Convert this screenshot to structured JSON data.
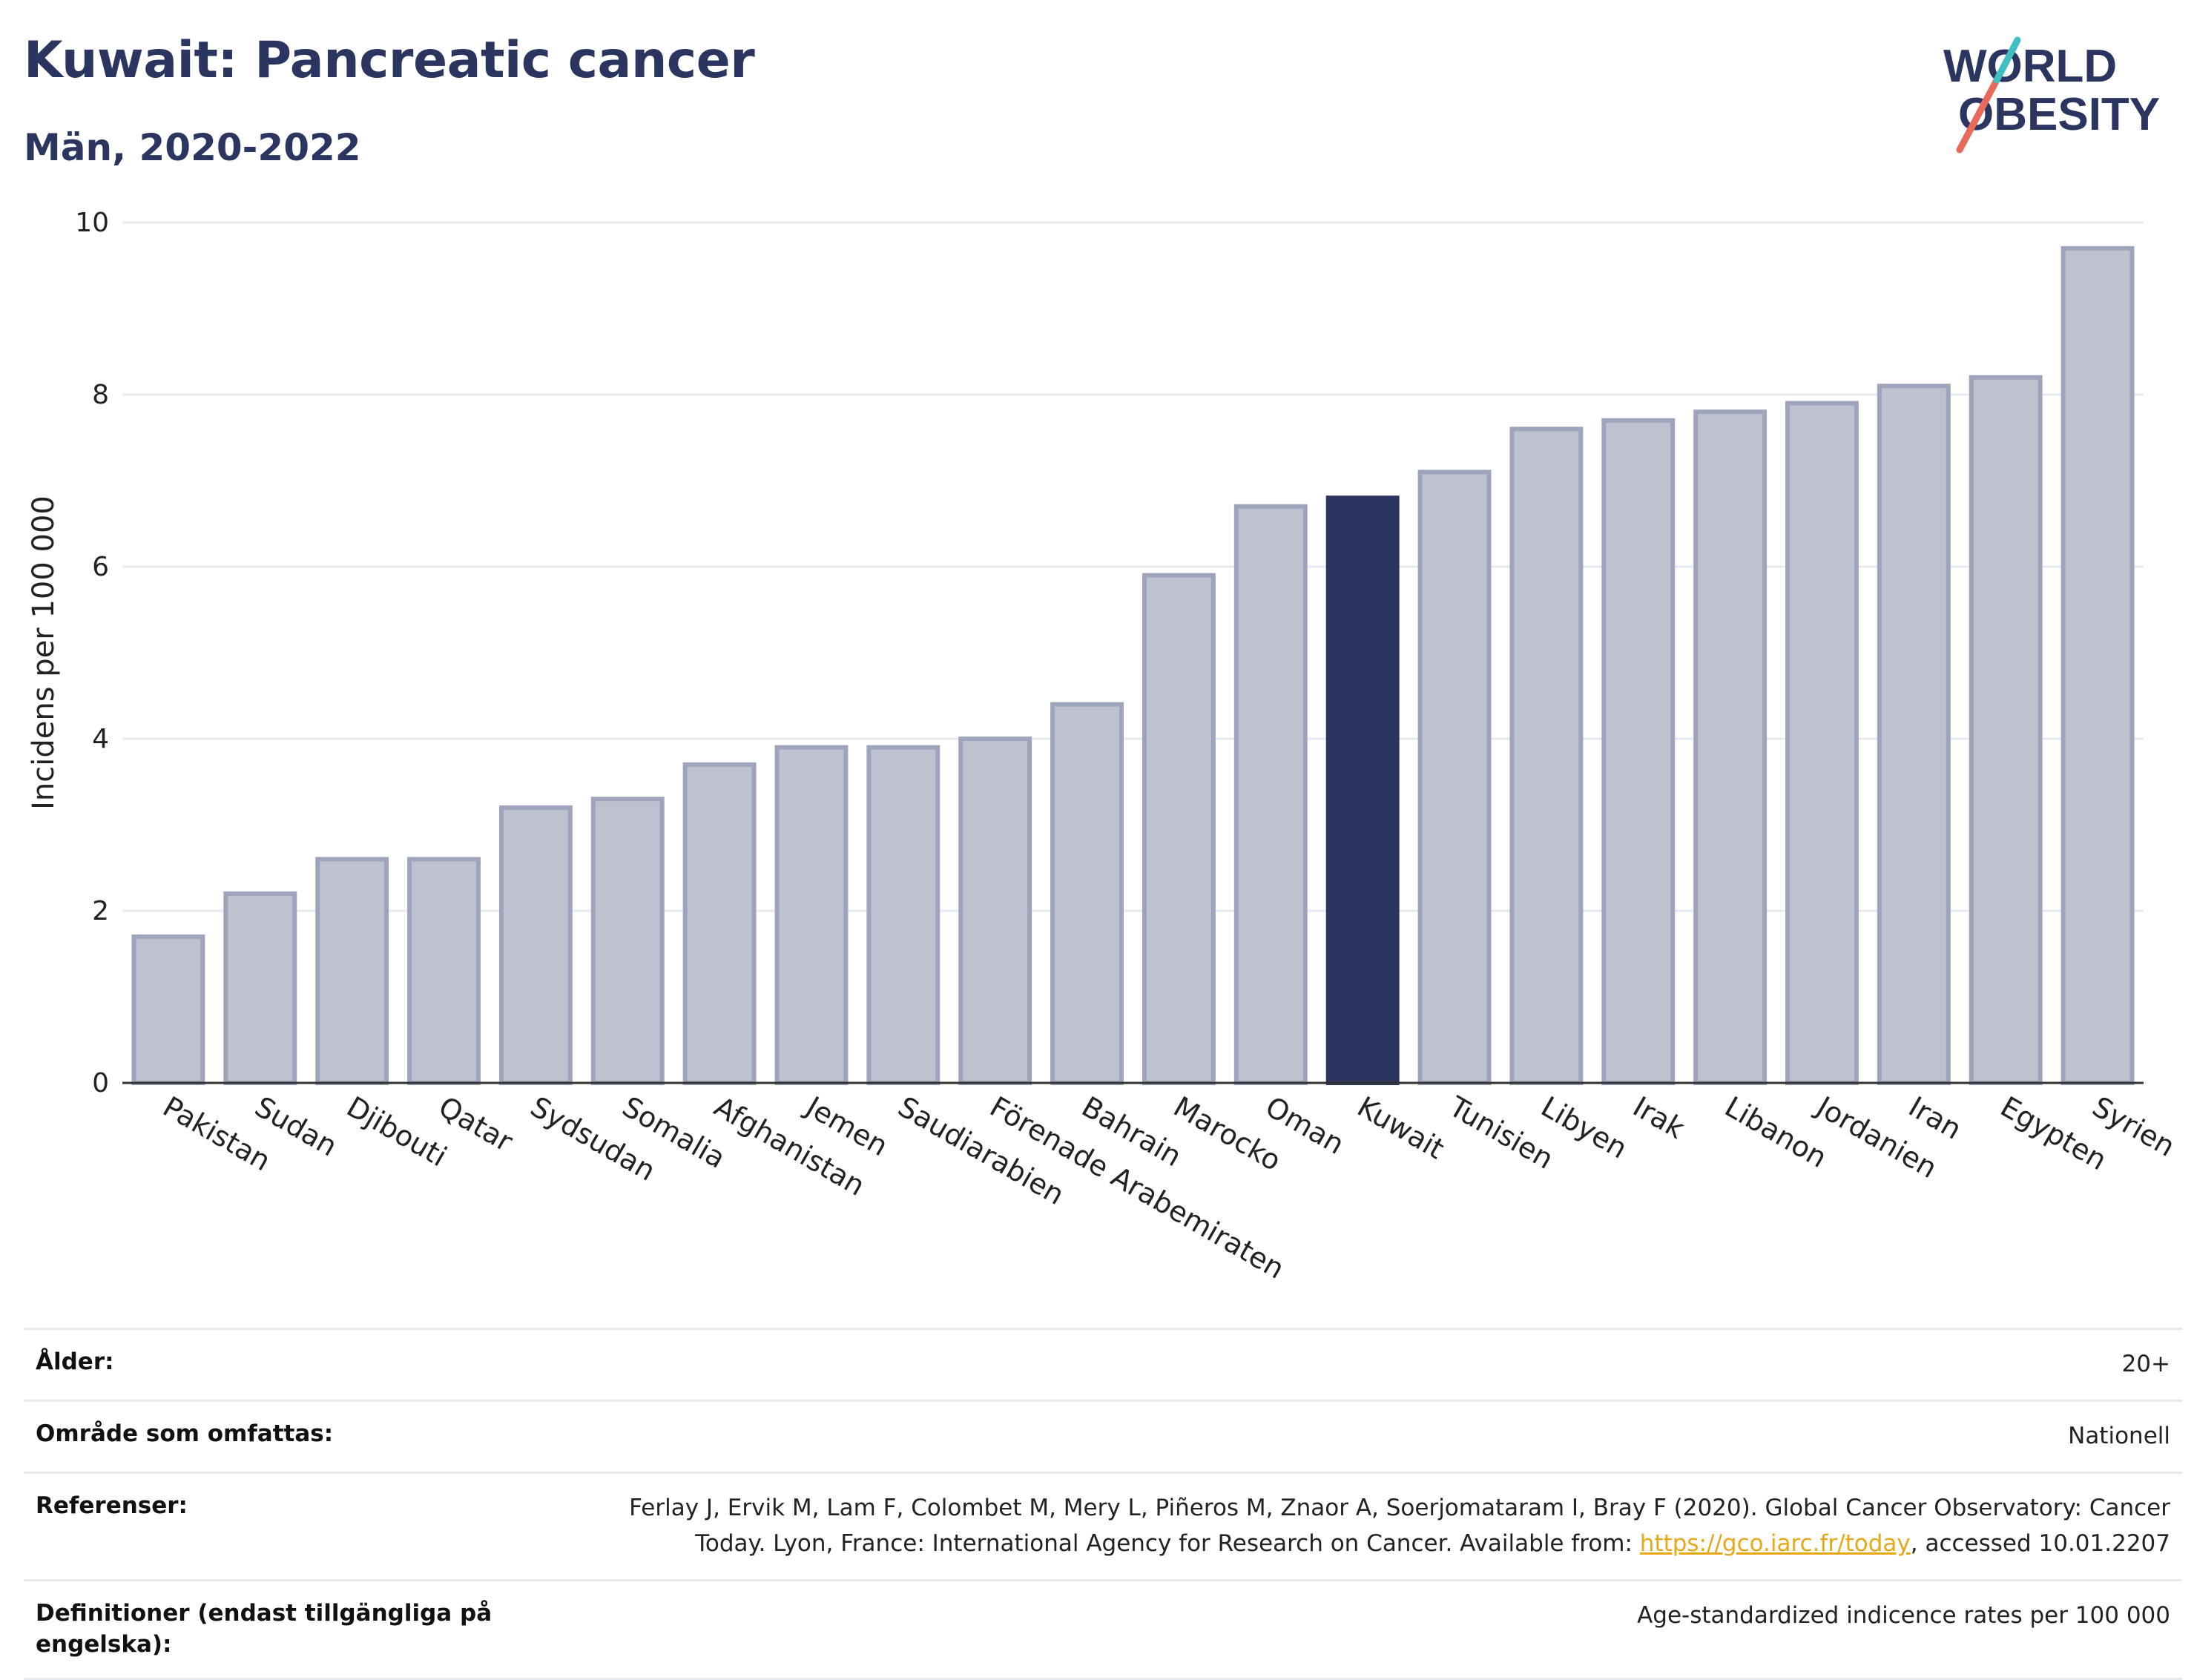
{
  "header": {
    "title": "Kuwait: Pancreatic cancer",
    "subtitle": "Män, 2020-2022"
  },
  "logo": {
    "line1": "WORLD",
    "line2": "OBESITY",
    "colors": [
      "#2a3560",
      "#e86a5a",
      "#3fbfbf"
    ]
  },
  "chart_data": {
    "type": "bar",
    "title": "Kuwait: Pancreatic cancer",
    "subtitle": "Män, 2020-2022",
    "ylabel": "Incidens per 100 000",
    "xlabel": "",
    "ylim": [
      0,
      10
    ],
    "yticks": [
      0,
      2,
      4,
      6,
      8,
      10
    ],
    "grid": true,
    "highlight": "Kuwait",
    "colors": {
      "bar": "#bec2d0",
      "bar_edge": "#9ea4bc",
      "highlight": "#2a3560",
      "grid": "#e6e9ef"
    },
    "categories": [
      "Pakistan",
      "Sudan",
      "Djibouti",
      "Qatar",
      "Sydsudan",
      "Somalia",
      "Afghanistan",
      "Jemen",
      "Saudiarabien",
      "Förenade Arabemiraten",
      "Bahrain",
      "Marocko",
      "Oman",
      "Kuwait",
      "Tunisien",
      "Libyen",
      "Irak",
      "Libanon",
      "Jordanien",
      "Iran",
      "Egypten",
      "Syrien"
    ],
    "values": [
      1.7,
      2.2,
      2.6,
      2.6,
      3.2,
      3.3,
      3.7,
      3.9,
      3.9,
      4.0,
      4.4,
      5.9,
      6.7,
      6.8,
      7.1,
      7.6,
      7.7,
      7.8,
      7.9,
      8.1,
      8.2,
      9.7
    ]
  },
  "info": {
    "age_label": "Ålder:",
    "age_value": "20+",
    "area_label": "Område som omfattas:",
    "area_value": "Nationell",
    "ref_label": "Referenser:",
    "ref_text1": "Ferlay J, Ervik M, Lam F, Colombet M, Mery L, Piñeros M, Znaor A, Soerjomataram I, Bray F (2020). Global Cancer Observatory: Cancer",
    "ref_text2": "Today. Lyon, France: International Agency for Research on Cancer. Available from: ",
    "ref_link": "https://gco.iarc.fr/today",
    "ref_text3": ", accessed 10.01.2207",
    "def_label": "Definitioner (endast tillgängliga på engelska):",
    "def_value": "Age-standardized indicence rates per 100 000"
  }
}
